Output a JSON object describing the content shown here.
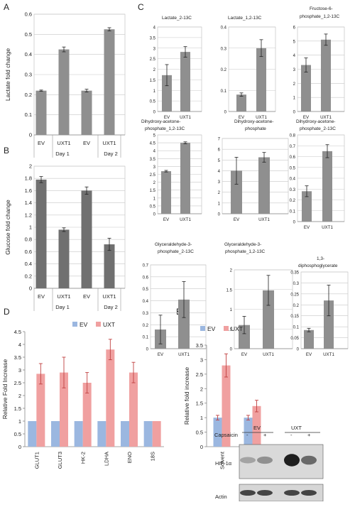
{
  "panels": {
    "A": "A",
    "B": "B",
    "C": "C",
    "D": "D",
    "E": "E"
  },
  "chart_data": [
    {
      "id": "A",
      "type": "bar",
      "categories": [
        "EV",
        "UXT1",
        "EV",
        "UXT1"
      ],
      "groups": [
        "Day 1",
        "Day 2"
      ],
      "values": [
        0.22,
        0.425,
        0.22,
        0.525
      ],
      "errors": [
        0.003,
        0.012,
        0.007,
        0.008
      ],
      "ylabel": "Lactate fold change",
      "ylim": [
        0,
        0.6
      ],
      "yticks": [
        0,
        0.1,
        0.2,
        0.3,
        0.4,
        0.5,
        0.6
      ],
      "color": "#8f8f8f",
      "grid": true
    },
    {
      "id": "B",
      "type": "bar",
      "categories": [
        "EV",
        "UXT1",
        "EV",
        "UXT1"
      ],
      "groups": [
        "Day 1",
        "Day 2"
      ],
      "values": [
        1.78,
        0.96,
        1.6,
        0.72
      ],
      "errors": [
        0.05,
        0.03,
        0.06,
        0.1
      ],
      "ylabel": "Glucose fold change",
      "ylim": [
        0,
        2
      ],
      "yticks": [
        0,
        0.2,
        0.4,
        0.6,
        0.8,
        1,
        1.2,
        1.4,
        1.6,
        1.8,
        2
      ],
      "color": "#707070",
      "grid": true
    },
    {
      "id": "C1",
      "type": "bar",
      "title": "Lactate_2-13C",
      "categories": [
        "EV",
        "UXT1"
      ],
      "values": [
        1.72,
        2.82
      ],
      "errors": [
        0.5,
        0.25
      ],
      "ylim": [
        0,
        4
      ],
      "yticks": [
        0,
        0.5,
        1,
        1.5,
        2,
        2.5,
        3,
        3.5,
        4
      ],
      "color": "#8f8f8f",
      "grid": true
    },
    {
      "id": "C2",
      "type": "bar",
      "title": "Lactate_1,2-13C",
      "categories": [
        "EV",
        "UXT1"
      ],
      "values": [
        0.08,
        0.3
      ],
      "errors": [
        0.008,
        0.04
      ],
      "ylim": [
        0,
        0.4
      ],
      "yticks": [
        0,
        0.1,
        0.2,
        0.3,
        0.4
      ],
      "color": "#8f8f8f",
      "grid": true
    },
    {
      "id": "C3",
      "type": "bar",
      "title": "Fructose-6-phosphate_1,2-13C",
      "categories": [
        "EV",
        "UXT1"
      ],
      "values": [
        3.3,
        5.1
      ],
      "errors": [
        0.5,
        0.4
      ],
      "ylim": [
        0,
        6
      ],
      "yticks": [
        0,
        1,
        2,
        3,
        4,
        5,
        6
      ],
      "color": "#8f8f8f",
      "grid": true
    },
    {
      "id": "C4",
      "type": "bar",
      "title": "Dihydroxy-acetone-phosphate_1,2-13C",
      "categories": [
        "EV",
        "UXT1"
      ],
      "values": [
        2.7,
        4.5
      ],
      "errors": [
        0.05,
        0.06
      ],
      "ylim": [
        0,
        5
      ],
      "yticks": [
        0,
        0.5,
        1,
        1.5,
        2,
        2.5,
        3,
        3.5,
        4,
        4.5,
        5
      ],
      "color": "#8f8f8f",
      "grid": true
    },
    {
      "id": "C5",
      "type": "bar",
      "title": "Dihydroxy-acetone-phosphate",
      "categories": [
        "EV",
        "UXT1"
      ],
      "values": [
        4.0,
        5.25
      ],
      "errors": [
        1.25,
        0.45
      ],
      "ylim": [
        0,
        7
      ],
      "yticks": [
        0,
        1,
        2,
        3,
        4,
        5,
        6,
        7
      ],
      "color": "#8f8f8f",
      "grid": true
    },
    {
      "id": "C6",
      "type": "bar",
      "title": "Dihydroxy-acetone-phosphate_2-13C",
      "categories": [
        "EV",
        "UXT1"
      ],
      "values": [
        0.28,
        0.65
      ],
      "errors": [
        0.05,
        0.06
      ],
      "ylim": [
        0,
        0.8
      ],
      "yticks": [
        0,
        0.1,
        0.2,
        0.3,
        0.4,
        0.5,
        0.6,
        0.7,
        0.8
      ],
      "color": "#8f8f8f",
      "grid": true
    },
    {
      "id": "C7",
      "type": "bar",
      "title": "Glyceraldehyde-3-phosphate_2-13C",
      "categories": [
        "EV",
        "UXT1"
      ],
      "values": [
        0.16,
        0.41
      ],
      "errors": [
        0.12,
        0.15
      ],
      "ylim": [
        0,
        0.7
      ],
      "yticks": [
        0,
        0.1,
        0.2,
        0.3,
        0.4,
        0.5,
        0.6,
        0.7
      ],
      "color": "#8f8f8f",
      "grid": true
    },
    {
      "id": "C8",
      "type": "bar",
      "title": "Glyceraldehyde-3-phosphate_1,2-13C",
      "categories": [
        "EV",
        "UXT1"
      ],
      "values": [
        0.6,
        1.48
      ],
      "errors": [
        0.22,
        0.38
      ],
      "ylim": [
        0,
        2
      ],
      "yticks": [
        0,
        0.5,
        1,
        1.5,
        2
      ],
      "color": "#8f8f8f",
      "grid": true
    },
    {
      "id": "C9",
      "type": "bar",
      "title": "1,3-diphosphoglycerate",
      "categories": [
        "EV",
        "UXT1"
      ],
      "values": [
        0.085,
        0.22
      ],
      "errors": [
        0.008,
        0.07
      ],
      "ylim": [
        0,
        0.35
      ],
      "yticks": [
        0,
        0.05,
        0.1,
        0.15,
        0.2,
        0.25,
        0.3,
        0.35
      ],
      "color": "#8f8f8f",
      "grid": true
    },
    {
      "id": "D",
      "type": "bar",
      "categories": [
        "GLUT1",
        "GLUT3",
        "HK-2",
        "LDHA",
        "ENO",
        "18S"
      ],
      "series": [
        {
          "name": "EV",
          "values": [
            1,
            1,
            1,
            1,
            1,
            1
          ],
          "errors": [
            0,
            0,
            0,
            0,
            0,
            0
          ],
          "color": "#9bb7e0"
        },
        {
          "name": "UXT",
          "values": [
            2.85,
            2.9,
            2.5,
            3.8,
            2.9,
            1
          ],
          "errors": [
            0.4,
            0.6,
            0.4,
            0.4,
            0.4,
            0
          ],
          "color": "#f0a0a0"
        }
      ],
      "ylabel": "Relative Fold Increase",
      "ylim": [
        0,
        4.5
      ],
      "yticks": [
        0,
        0.5,
        1,
        1.5,
        2,
        2.5,
        3,
        3.5,
        4,
        4.5
      ],
      "legend": "top"
    },
    {
      "id": "E",
      "type": "bar",
      "categories": [
        "Solvent",
        "Capsaicin"
      ],
      "series": [
        {
          "name": "EV",
          "values": [
            1,
            1
          ],
          "errors": [
            0.08,
            0.08
          ],
          "color": "#9bb7e0"
        },
        {
          "name": "UXT",
          "values": [
            2.8,
            1.4
          ],
          "errors": [
            0.4,
            0.2
          ],
          "color": "#f0a0a0"
        }
      ],
      "ylabel": "Relative fold increase",
      "ylim": [
        0,
        3.5
      ],
      "yticks": [
        0,
        0.5,
        1,
        1.5,
        2,
        2.5,
        3,
        3.5
      ],
      "legend": "top"
    }
  ],
  "blot": {
    "ev_label": "EV",
    "uxt_label": "UXT",
    "capsaicin_label": "Capsaicin",
    "lane_signs": [
      "-",
      "+",
      "-",
      "+"
    ],
    "hif_label": "HIF-1α",
    "actin_label": "Actin",
    "hif_intensity": [
      0.25,
      0.35,
      0.95,
      0.55
    ],
    "actin_intensity": [
      0.75,
      0.75,
      0.75,
      0.75
    ]
  }
}
